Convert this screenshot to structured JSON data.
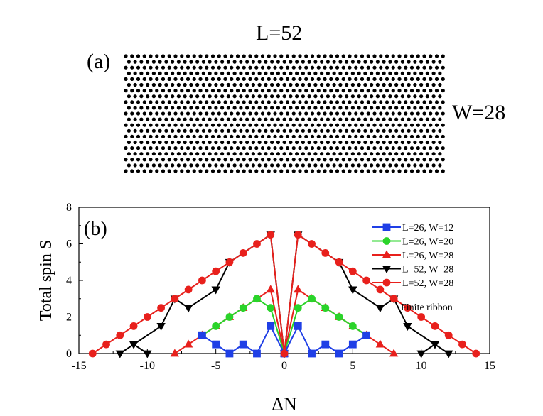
{
  "panel_a": {
    "label": "(a)",
    "length_label": "L=52",
    "width_label": "W=28"
  },
  "chart_data": {
    "type": "line",
    "panel_label": "(b)",
    "title": "",
    "xlabel": "ΔN",
    "ylabel": "Total spin S",
    "xlim": [
      -15,
      15
    ],
    "ylim": [
      0,
      8
    ],
    "xticks": [
      -15,
      -10,
      -5,
      0,
      5,
      10,
      15
    ],
    "yticks": [
      0,
      2,
      4,
      6,
      8
    ],
    "legend_note": "Finite ribbon",
    "series": [
      {
        "name": "L=52, W=28",
        "legend": "L=52, W=28",
        "color": "#000000",
        "marker": "triangle-down",
        "x": [
          -10,
          -11,
          -12,
          -9,
          -8,
          -7,
          -5,
          -4,
          -1,
          0,
          1,
          4,
          5,
          7,
          8,
          9,
          12,
          11,
          10
        ],
        "y": [
          0,
          0.5,
          0,
          1.5,
          3,
          2.5,
          3.5,
          5,
          6.5,
          0,
          6.5,
          5,
          3.5,
          2.5,
          3,
          1.5,
          0,
          0.5,
          0
        ]
      },
      {
        "name": "L=26, W=28",
        "legend": "L=26, W=28",
        "color": "#e8201c",
        "marker": "triangle-up",
        "x": [
          -8,
          -7,
          -6,
          -5,
          -4,
          -3,
          -2,
          -1,
          0,
          1,
          2,
          3,
          4,
          5,
          6,
          7,
          8
        ],
        "y": [
          0,
          0.5,
          1,
          1.5,
          2,
          2.5,
          3,
          3.5,
          0,
          3.5,
          3,
          2.5,
          2,
          1.5,
          1,
          0.5,
          0
        ]
      },
      {
        "name": "L=26, W=20",
        "legend": "L=26, W=20",
        "color": "#2ad42a",
        "marker": "circle",
        "x": [
          -6,
          -5,
          -4,
          -3,
          -2,
          -1,
          0,
          1,
          2,
          3,
          4,
          5,
          6
        ],
        "y": [
          1,
          1.5,
          2,
          2.5,
          3,
          2.5,
          0,
          2.5,
          3,
          2.5,
          2,
          1.5,
          1
        ]
      },
      {
        "name": "L=26, W=12",
        "legend": "L=26, W=12",
        "color": "#1f3fe6",
        "marker": "square",
        "x": [
          -6,
          -5,
          -4,
          -3,
          -2,
          -1,
          0,
          1,
          2,
          3,
          4,
          5,
          6
        ],
        "y": [
          1,
          0.5,
          0,
          0.5,
          0,
          1.5,
          0,
          1.5,
          0,
          0.5,
          0,
          0.5,
          1
        ]
      },
      {
        "name": "L=52, W=28 (finite ribbon)",
        "legend": " L=52, W=28",
        "color": "#e8201c",
        "marker": "circle",
        "x": [
          -14,
          -13,
          -12,
          -11,
          -10,
          -9,
          -8,
          -7,
          -6,
          -5,
          -4,
          -3,
          -2,
          -1,
          0,
          1,
          2,
          3,
          4,
          5,
          6,
          7,
          8,
          9,
          10,
          11,
          12,
          13,
          14
        ],
        "y": [
          0,
          0.5,
          1,
          1.5,
          2,
          2.5,
          3,
          3.5,
          4,
          4.5,
          5,
          5.5,
          6,
          6.5,
          0,
          6.5,
          6,
          5.5,
          5,
          4.5,
          4,
          3.5,
          3,
          2.5,
          2,
          1.5,
          1,
          0.5,
          0
        ]
      }
    ],
    "legend_order": [
      3,
      2,
      1,
      0,
      4
    ]
  }
}
